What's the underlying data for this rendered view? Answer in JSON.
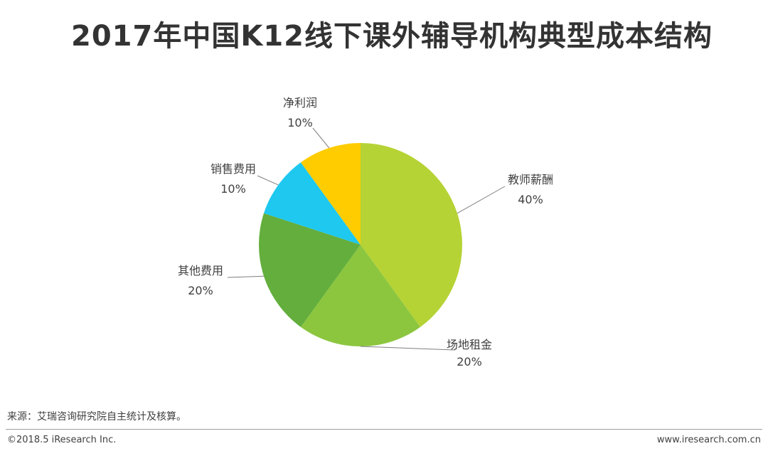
{
  "title": "2017年中国K12线下课外辅导机构典型成本结构",
  "chart_data": {
    "type": "pie",
    "title": "2017年中国K12线下课外辅导机构典型成本结构",
    "slices": [
      {
        "label": "教师薪酬",
        "value": 40,
        "display": "40%",
        "color": "#b5d334"
      },
      {
        "label": "场地租金",
        "value": 20,
        "display": "20%",
        "color": "#8cc63f"
      },
      {
        "label": "其他费用",
        "value": 20,
        "display": "20%",
        "color": "#63ae3c"
      },
      {
        "label": "销售费用",
        "value": 10,
        "display": "10%",
        "color": "#1ec8ef"
      },
      {
        "label": "净利润",
        "value": 10,
        "display": "10%",
        "color": "#ffcc00"
      }
    ]
  },
  "footer": {
    "source": "来源：艾瑞咨询研究院自主统计及核算。",
    "copyright": "©2018.5 iResearch Inc.",
    "website": "www.iresearch.com.cn"
  }
}
